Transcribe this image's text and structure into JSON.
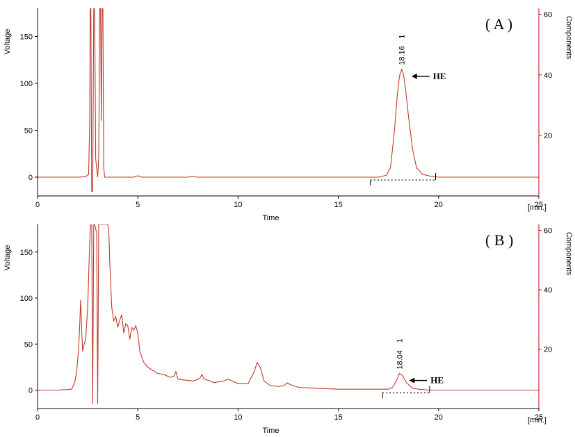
{
  "colors": {
    "trace": "#c0392b",
    "right_axis": "#c00000",
    "axis": "#000000"
  },
  "chart_data": [
    {
      "type": "line",
      "panel_label": "( A )",
      "xlabel": "Time",
      "x_unit": "[min.]",
      "ylabel": "Voltage",
      "y2label": "Components",
      "xlim": [
        0,
        25
      ],
      "ylim": [
        -20,
        180
      ],
      "y2lim": [
        0,
        62
      ],
      "x_ticks": [
        0,
        5,
        10,
        15,
        20,
        25
      ],
      "y_ticks": [
        0,
        50,
        100,
        150
      ],
      "y2_ticks": [
        20,
        40,
        60
      ],
      "grid": false,
      "series": [
        {
          "x": [
            0,
            1,
            2,
            2.4,
            2.55,
            2.6,
            2.63,
            2.66,
            2.7,
            2.75,
            2.8,
            2.85,
            2.9,
            3.0,
            3.05,
            3.1,
            3.14,
            3.18,
            3.22,
            3.26,
            3.3,
            3.35,
            3.5,
            4,
            4.8,
            5,
            5.2,
            6,
            7.5,
            7.7,
            8,
            9,
            10,
            11,
            12,
            13,
            14,
            15,
            16,
            16.5,
            17,
            17.4,
            17.6,
            17.8,
            17.95,
            18.05,
            18.16,
            18.25,
            18.35,
            18.5,
            18.7,
            18.9,
            19.2,
            19.6,
            20,
            21,
            22,
            23,
            24,
            25
          ],
          "y": [
            0,
            0,
            0,
            0.5,
            3,
            60,
            180,
            180,
            -15,
            -15,
            180,
            180,
            20,
            0,
            20,
            180,
            180,
            60,
            180,
            180,
            10,
            0,
            0,
            0,
            0,
            1.5,
            0,
            0,
            0,
            1,
            0,
            0,
            0,
            0,
            0,
            0,
            0,
            0,
            0,
            0,
            0,
            2,
            10,
            50,
            90,
            108,
            115,
            110,
            95,
            65,
            30,
            10,
            3,
            1,
            0,
            0,
            0,
            0,
            0,
            0
          ]
        }
      ],
      "annotations": [
        {
          "peak_time": "18.16",
          "peak_number": "1",
          "x": 18.16,
          "y": 115
        },
        {
          "text": "HE",
          "x": 18.16,
          "y": 115
        }
      ],
      "baseline": {
        "x_start": 16.6,
        "x_end": 19.85
      }
    },
    {
      "type": "line",
      "panel_label": "( B )",
      "xlabel": "Time",
      "x_unit": "[min.]",
      "ylabel": "Voltage",
      "y2label": "Components",
      "xlim": [
        0,
        25
      ],
      "ylim": [
        -20,
        180
      ],
      "y2lim": [
        0,
        62
      ],
      "x_ticks": [
        0,
        5,
        10,
        15,
        20,
        25
      ],
      "y_ticks": [
        0,
        50,
        100,
        150
      ],
      "y2_ticks": [
        20,
        40,
        60
      ],
      "grid": false,
      "series": [
        {
          "x": [
            0,
            1,
            1.7,
            1.85,
            1.95,
            2.05,
            2.1,
            2.15,
            2.2,
            2.25,
            2.3,
            2.4,
            2.5,
            2.6,
            2.65,
            2.7,
            2.75,
            2.8,
            2.85,
            2.95,
            3.0,
            3.05,
            3.1,
            3.15,
            3.2,
            3.3,
            3.4,
            3.5,
            3.55,
            3.6,
            3.7,
            3.8,
            3.9,
            4.0,
            4.1,
            4.2,
            4.3,
            4.4,
            4.5,
            4.6,
            4.7,
            4.8,
            4.9,
            5.0,
            5.1,
            5.3,
            5.5,
            5.7,
            6.0,
            6.3,
            6.6,
            6.8,
            6.9,
            7.0,
            7.3,
            7.8,
            8.1,
            8.2,
            8.3,
            8.6,
            8.8,
            9.0,
            9.3,
            9.5,
            9.7,
            10.0,
            10.5,
            10.8,
            10.95,
            11.1,
            11.3,
            11.6,
            12.0,
            12.3,
            12.45,
            12.6,
            13.0,
            14,
            15,
            16,
            17,
            17.5,
            17.7,
            17.9,
            18.04,
            18.2,
            18.4,
            18.7,
            19.0,
            19.5,
            20,
            21,
            22,
            23,
            24,
            25
          ],
          "y": [
            0,
            0,
            1,
            8,
            20,
            45,
            70,
            98,
            65,
            42,
            48,
            55,
            90,
            160,
            180,
            180,
            -15,
            180,
            180,
            170,
            -15,
            180,
            180,
            180,
            180,
            180,
            180,
            180,
            175,
            140,
            90,
            75,
            80,
            68,
            76,
            82,
            62,
            72,
            70,
            55,
            68,
            65,
            70,
            62,
            42,
            30,
            25,
            22,
            18,
            17,
            14,
            15,
            20,
            12,
            11,
            10,
            13,
            17,
            12,
            10,
            8,
            9,
            10,
            12,
            10,
            7,
            7,
            20,
            30,
            25,
            10,
            5,
            4,
            5,
            8,
            6,
            3,
            2,
            1,
            1,
            1,
            1,
            3,
            10,
            18,
            16,
            8,
            2,
            1,
            0,
            0,
            0,
            0,
            0,
            0,
            0
          ]
        }
      ],
      "annotations": [
        {
          "peak_time": "18.04",
          "peak_number": "1",
          "x": 18.04,
          "y": 18
        },
        {
          "text": "HE",
          "x": 18.04,
          "y": 18
        }
      ],
      "baseline": {
        "x_start": 17.2,
        "x_end": 19.55
      }
    }
  ]
}
